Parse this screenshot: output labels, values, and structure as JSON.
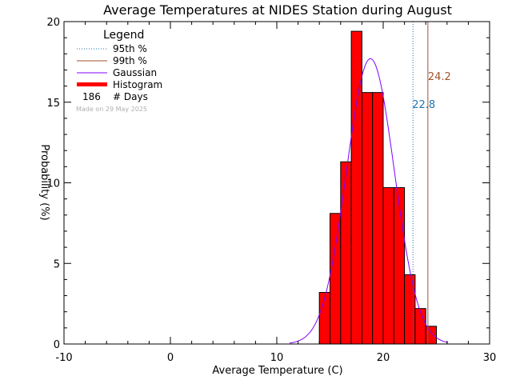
{
  "chart_data": {
    "type": "bar",
    "title": "Average Temperatures at NIDES Station during August",
    "xlabel": "Average Temperature (C)",
    "ylabel": "Probability (%)",
    "xlim": [
      -10,
      30
    ],
    "ylim": [
      0,
      20
    ],
    "x_ticks": [
      -10,
      0,
      10,
      20,
      30
    ],
    "y_ticks": [
      0,
      5,
      10,
      15,
      20
    ],
    "histogram": {
      "name": "Histogram",
      "bin_width": 1,
      "bin_starts": [
        14,
        15,
        16,
        17,
        18,
        19,
        20,
        21,
        22,
        23,
        24
      ],
      "values": [
        3.2,
        8.1,
        11.3,
        19.4,
        15.6,
        15.6,
        9.7,
        9.7,
        4.3,
        2.2,
        1.1
      ]
    },
    "gaussian": {
      "name": "Gaussian",
      "mean": 18.8,
      "peak": 17.7,
      "sigma": 2.25
    },
    "percentile_95": {
      "name": "95th %",
      "value": 22.8,
      "label": "22.8"
    },
    "percentile_99": {
      "name": "99th %",
      "value": 24.2,
      "label": "24.2"
    },
    "legend": {
      "title": "Legend",
      "entries": [
        "95th %",
        "99th %",
        "Gaussian",
        "Histogram"
      ],
      "days_count": "186",
      "days_label": "# Days",
      "made_on": "Made on 29 May 2025"
    },
    "colors": {
      "histogram": "#ff0000",
      "gaussian": "#8000ff",
      "p95": "#1f77b4",
      "p99": "#a0522d",
      "made_on": "#b0b0b0"
    }
  }
}
